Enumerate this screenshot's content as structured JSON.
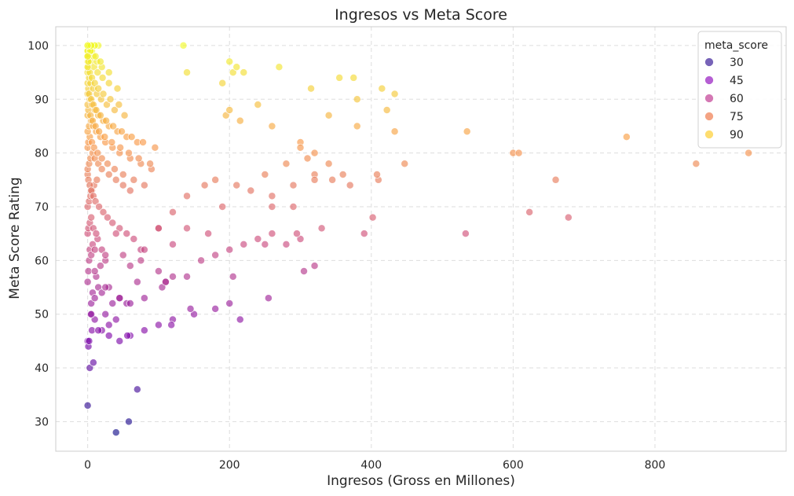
{
  "chart_data": {
    "type": "scatter",
    "title": "Ingresos vs Meta Score",
    "xlabel": "Ingresos (Gross en Millones)",
    "ylabel": "Meta Score Rating",
    "xlim": [
      -45,
      985
    ],
    "ylim": [
      24.5,
      103.5
    ],
    "xticks": [
      0,
      200,
      400,
      600,
      800
    ],
    "yticks": [
      30,
      40,
      50,
      60,
      70,
      80,
      90,
      100
    ],
    "grid": true,
    "legend": {
      "title": "meta_score",
      "placement": "top-right",
      "entries": [
        {
          "label": "30",
          "color": "#4a2fa0"
        },
        {
          "label": "45",
          "color": "#9c28c4"
        },
        {
          "label": "60",
          "color": "#c64b9b"
        },
        {
          "label": "75",
          "color": "#f0845a"
        },
        {
          "label": "90",
          "color": "#fdd13f"
        }
      ]
    },
    "color_scale": {
      "min": 28,
      "max": 100,
      "stops": [
        "#0d0887",
        "#7e03a8",
        "#cc4778",
        "#f89540",
        "#f0f921"
      ]
    },
    "x": [
      0,
      0,
      1,
      2,
      3,
      4,
      5,
      6,
      7,
      8,
      10,
      12,
      15,
      0,
      1,
      2,
      3,
      5,
      7,
      10,
      14,
      18,
      0,
      1,
      3,
      5,
      8,
      12,
      20,
      25,
      30,
      0,
      2,
      4,
      6,
      9,
      13,
      0,
      1,
      3,
      5,
      8,
      11,
      16,
      22,
      28,
      35,
      45,
      55,
      0,
      2,
      4,
      7,
      10,
      15,
      20,
      30,
      40,
      50,
      60,
      0,
      1,
      3,
      6,
      9,
      14,
      20,
      28,
      38,
      50,
      65,
      80,
      0,
      2,
      5,
      8,
      12,
      18,
      25,
      35,
      45,
      60,
      75,
      90,
      0,
      1,
      4,
      7,
      11,
      16,
      24,
      34,
      46,
      58,
      72,
      88,
      0,
      3,
      6,
      10,
      15,
      22,
      30,
      42,
      55,
      70,
      0,
      1,
      2,
      5,
      8,
      12,
      18,
      26,
      36,
      48,
      62,
      78,
      95,
      0,
      2,
      4,
      8,
      13,
      19,
      27,
      38,
      52,
      0,
      1,
      3,
      6,
      10,
      15,
      22,
      32,
      44,
      0,
      2,
      5,
      9,
      14,
      21,
      30,
      42,
      0,
      1,
      4,
      8,
      13,
      20,
      30,
      0,
      2,
      6,
      11,
      18,
      0,
      3,
      8,
      15,
      0,
      4,
      10,
      0,
      5,
      0,
      1,
      0,
      40,
      58,
      70,
      20,
      30,
      45,
      60,
      80,
      100,
      120,
      150,
      180,
      200,
      5,
      10,
      15,
      20,
      25,
      30,
      35,
      40,
      45,
      10,
      25,
      55,
      80,
      110,
      140,
      160,
      180,
      200,
      220,
      240,
      260,
      280,
      300,
      320,
      25,
      40,
      65,
      75,
      100,
      120,
      140,
      170,
      190,
      210,
      230,
      260,
      290,
      320,
      345,
      370,
      135,
      200,
      205,
      210,
      220,
      270,
      315,
      355,
      375,
      380,
      415,
      422,
      433,
      140,
      190,
      195,
      200,
      215,
      240,
      260,
      300,
      340,
      380,
      433,
      535,
      250,
      295,
      305,
      330,
      390,
      402,
      533,
      623,
      678,
      260,
      290,
      320,
      360,
      410,
      447,
      660,
      300,
      320,
      340,
      408,
      600,
      608,
      760,
      858,
      932,
      56,
      118,
      145,
      205,
      215,
      255,
      60,
      70,
      75,
      100,
      105,
      110,
      120,
      45,
      50,
      60,
      80,
      100,
      120,
      140,
      165,
      180,
      250,
      280,
      310
    ],
    "y": [
      33,
      45,
      44,
      45,
      40,
      50,
      52,
      47,
      54,
      41,
      49,
      57,
      55,
      56,
      58,
      60,
      62,
      61,
      63,
      62,
      64,
      59,
      65,
      66,
      67,
      68,
      66,
      65,
      62,
      60,
      55,
      70,
      71,
      72,
      73,
      74,
      75,
      76,
      75,
      74,
      73,
      72,
      71,
      70,
      69,
      68,
      67,
      66,
      65,
      77,
      78,
      79,
      80,
      79,
      78,
      77,
      76,
      75,
      74,
      73,
      81,
      82,
      83,
      82,
      81,
      80,
      79,
      78,
      77,
      76,
      75,
      74,
      84,
      85,
      86,
      85,
      84,
      83,
      82,
      81,
      80,
      79,
      78,
      77,
      87,
      88,
      87,
      86,
      85,
      84,
      83,
      82,
      81,
      80,
      79,
      78,
      89,
      90,
      89,
      88,
      87,
      86,
      85,
      84,
      83,
      82,
      91,
      92,
      91,
      90,
      89,
      88,
      87,
      86,
      85,
      84,
      83,
      82,
      81,
      93,
      94,
      93,
      92,
      91,
      90,
      89,
      88,
      87,
      95,
      96,
      95,
      94,
      93,
      92,
      91,
      90,
      89,
      97,
      98,
      97,
      96,
      95,
      94,
      93,
      92,
      99,
      100,
      99,
      98,
      97,
      96,
      95,
      100,
      100,
      99,
      98,
      97,
      99,
      100,
      100,
      100,
      98,
      99,
      100,
      96,
      100,
      100,
      97,
      98,
      28,
      30,
      36,
      47,
      48,
      45,
      46,
      47,
      48,
      49,
      50,
      51,
      52,
      50,
      53,
      47,
      54,
      50,
      46,
      52,
      49,
      53,
      58,
      55,
      52,
      53,
      56,
      57,
      60,
      61,
      62,
      63,
      64,
      65,
      63,
      64,
      59,
      61,
      65,
      64,
      62,
      66,
      63,
      66,
      65,
      70,
      74,
      73,
      72,
      74,
      76,
      75,
      74,
      100,
      97,
      95,
      96,
      95,
      96,
      92,
      94,
      94,
      90,
      92,
      88,
      91,
      95,
      93,
      87,
      88,
      86,
      89,
      85,
      82,
      87,
      85,
      84,
      84,
      63,
      65,
      58,
      66,
      65,
      68,
      65,
      69,
      68,
      70,
      70,
      75,
      76,
      75,
      78,
      75,
      81,
      80,
      78,
      76,
      80,
      80,
      83,
      78,
      80,
      46,
      48,
      51,
      57,
      49,
      53,
      52,
      56,
      60,
      58,
      55,
      56,
      57,
      53,
      61,
      59,
      62,
      66,
      69,
      72,
      74,
      75,
      76,
      78,
      79
    ]
  }
}
